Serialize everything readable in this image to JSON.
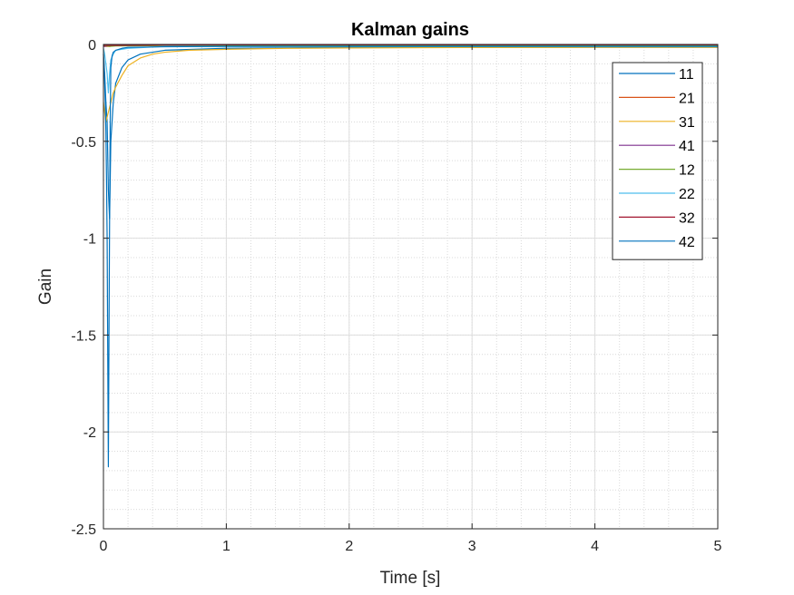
{
  "chart_data": {
    "type": "line",
    "title": "Kalman gains",
    "xlabel": "Time [s]",
    "ylabel": "Gain",
    "xlim": [
      0,
      5
    ],
    "ylim": [
      -2.5,
      0
    ],
    "xticks": [
      0,
      1,
      2,
      3,
      4,
      5
    ],
    "yticks": [
      -2.5,
      -2,
      -1.5,
      -1,
      -0.5,
      0
    ],
    "xtick_labels": [
      "0",
      "1",
      "2",
      "3",
      "4",
      "5"
    ],
    "ytick_labels": [
      "-2.5",
      "-2",
      "-1.5",
      "-1",
      "-0.5",
      "0"
    ],
    "grid": true,
    "minor_grid": true,
    "legend_position": "top-right",
    "series": [
      {
        "name": "11",
        "color": "#0072BD",
        "x": [
          0,
          0.01,
          0.02,
          0.03,
          0.04,
          0.05,
          0.06,
          0.08,
          0.1,
          0.15,
          0.2,
          0.3,
          0.5,
          1,
          2,
          3,
          4,
          5
        ],
        "y": [
          -0.05,
          -0.15,
          -0.3,
          -0.4,
          -0.75,
          -0.9,
          -0.5,
          -0.3,
          -0.2,
          -0.12,
          -0.08,
          -0.05,
          -0.03,
          -0.02,
          -0.015,
          -0.015,
          -0.015,
          -0.015
        ]
      },
      {
        "name": "21",
        "color": "#D95319",
        "x": [
          0,
          0.05,
          0.1,
          0.2,
          0.5,
          1,
          2,
          3,
          4,
          5
        ],
        "y": [
          -0.01,
          -0.01,
          -0.005,
          -0.005,
          -0.003,
          -0.002,
          -0.002,
          -0.002,
          -0.002,
          -0.002
        ]
      },
      {
        "name": "31",
        "color": "#EDB120",
        "x": [
          0,
          0.02,
          0.04,
          0.06,
          0.08,
          0.1,
          0.15,
          0.2,
          0.25,
          0.3,
          0.4,
          0.5,
          0.7,
          1,
          1.5,
          2,
          3,
          4,
          5
        ],
        "y": [
          -0.3,
          -0.4,
          -0.35,
          -0.3,
          -0.25,
          -0.22,
          -0.16,
          -0.11,
          -0.09,
          -0.07,
          -0.05,
          -0.04,
          -0.03,
          -0.025,
          -0.02,
          -0.018,
          -0.016,
          -0.015,
          -0.015
        ]
      },
      {
        "name": "41",
        "color": "#7E2F8E",
        "x": [
          0,
          0.1,
          0.5,
          1,
          2,
          3,
          4,
          5
        ],
        "y": [
          -0.01,
          -0.005,
          -0.003,
          -0.002,
          -0.002,
          -0.002,
          -0.002,
          -0.002
        ]
      },
      {
        "name": "12",
        "color": "#77AC30",
        "x": [
          0,
          0.05,
          0.1,
          0.5,
          1,
          2,
          3,
          4,
          5
        ],
        "y": [
          -0.005,
          -0.01,
          -0.008,
          -0.006,
          -0.005,
          -0.005,
          -0.005,
          -0.005,
          -0.005
        ]
      },
      {
        "name": "22",
        "color": "#4DBEEE",
        "x": [
          0,
          0.01,
          0.02,
          0.03,
          0.04,
          0.05,
          0.06,
          0.08,
          0.1,
          0.2,
          0.5,
          1,
          2,
          3,
          4,
          5
        ],
        "y": [
          -0.02,
          -0.05,
          -0.1,
          -0.15,
          -0.25,
          -0.15,
          -0.08,
          -0.05,
          -0.03,
          -0.02,
          -0.01,
          -0.01,
          -0.01,
          -0.01,
          -0.01,
          -0.01
        ]
      },
      {
        "name": "32",
        "color": "#A2142F",
        "x": [
          0,
          0.1,
          0.5,
          1,
          2,
          3,
          4,
          5
        ],
        "y": [
          -0.005,
          -0.005,
          -0.003,
          -0.002,
          -0.002,
          -0.002,
          -0.002,
          -0.002
        ]
      },
      {
        "name": "42",
        "color": "#0072BD",
        "x": [
          0,
          0.005,
          0.01,
          0.015,
          0.02,
          0.025,
          0.03,
          0.035,
          0.04,
          0.045,
          0.05,
          0.055,
          0.06,
          0.07,
          0.08,
          0.1,
          0.15,
          0.2,
          0.5,
          1,
          2,
          3,
          4,
          5
        ],
        "y": [
          -0.05,
          -0.1,
          -0.2,
          -0.3,
          -0.45,
          -0.7,
          -1.0,
          -1.6,
          -2.18,
          -1.5,
          -0.9,
          -0.4,
          -0.12,
          -0.06,
          -0.04,
          -0.03,
          -0.02,
          -0.015,
          -0.012,
          -0.01,
          -0.01,
          -0.01,
          -0.01,
          -0.01
        ]
      }
    ]
  }
}
